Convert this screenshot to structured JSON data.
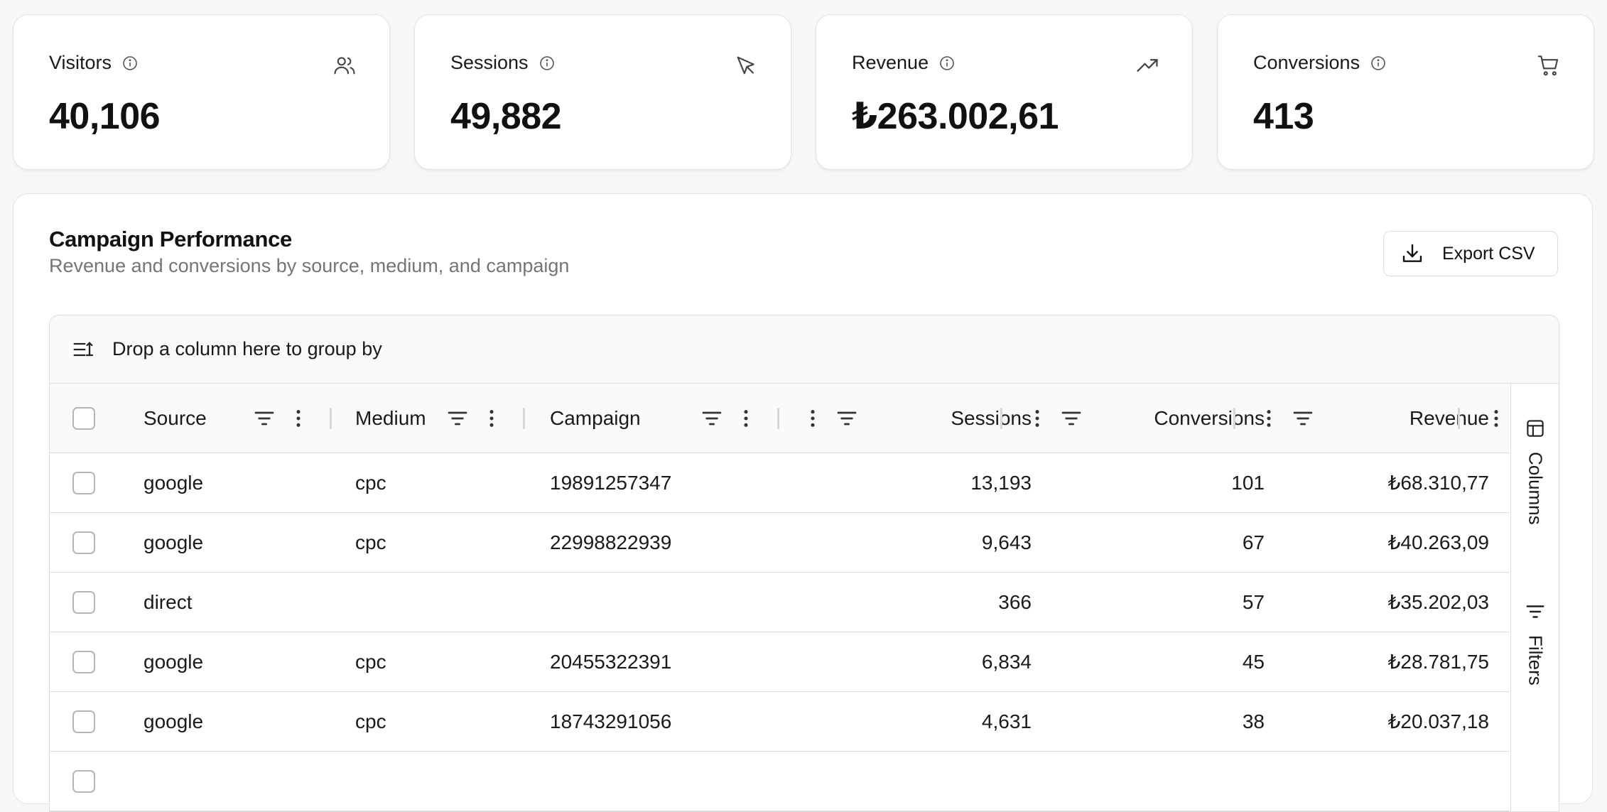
{
  "kpis": [
    {
      "label": "Visitors",
      "value": "40,106",
      "icon": "users-icon"
    },
    {
      "label": "Sessions",
      "value": "49,882",
      "icon": "cursor-icon"
    },
    {
      "label": "Revenue",
      "value": "₺263.002,61",
      "icon": "trending-up-icon"
    },
    {
      "label": "Conversions",
      "value": "413",
      "icon": "cart-icon"
    }
  ],
  "panel": {
    "title": "Campaign Performance",
    "subtitle": "Revenue and conversions by source, medium, and campaign",
    "export_label": "Export CSV"
  },
  "grid": {
    "group_hint": "Drop a column here to group by",
    "columns": {
      "source": "Source",
      "medium": "Medium",
      "campaign": "Campaign",
      "sessions": "Sessions",
      "conversions": "Conversions",
      "revenue": "Revenue"
    },
    "side_panel": {
      "columns_label": "Columns",
      "filters_label": "Filters"
    },
    "rows": [
      {
        "source": "google",
        "medium": "cpc",
        "campaign": "19891257347",
        "sessions": "13,193",
        "conversions": "101",
        "revenue": "₺68.310,77"
      },
      {
        "source": "google",
        "medium": "cpc",
        "campaign": "22998822939",
        "sessions": "9,643",
        "conversions": "67",
        "revenue": "₺40.263,09"
      },
      {
        "source": "direct",
        "medium": "",
        "campaign": "",
        "sessions": "366",
        "conversions": "57",
        "revenue": "₺35.202,03"
      },
      {
        "source": "google",
        "medium": "cpc",
        "campaign": "20455322391",
        "sessions": "6,834",
        "conversions": "45",
        "revenue": "₺28.781,75"
      },
      {
        "source": "google",
        "medium": "cpc",
        "campaign": "18743291056",
        "sessions": "4,631",
        "conversions": "38",
        "revenue": "₺20.037,18"
      }
    ]
  }
}
